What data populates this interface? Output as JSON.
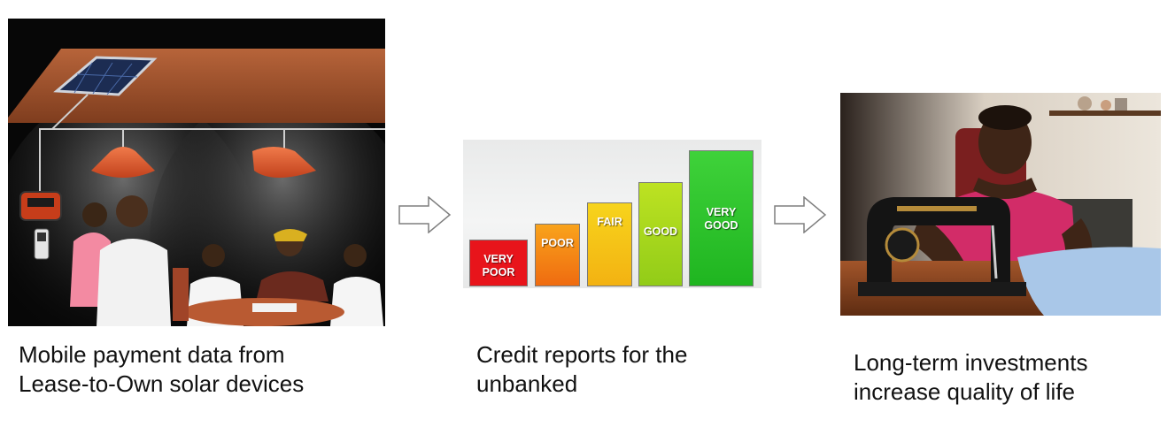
{
  "steps": [
    {
      "caption_line1": "Mobile payment data from",
      "caption_line2": "Lease-to-Own solar devices",
      "image_icon": "solar-home-system-illustration"
    },
    {
      "caption_line1": "Credit reports for the",
      "caption_line2": "unbanked",
      "image_icon": "credit-score-bar-chart"
    },
    {
      "caption_line1": "Long-term investments",
      "caption_line2": "increase quality of life",
      "image_icon": "woman-at-sewing-machine-photo"
    }
  ],
  "arrows": [
    "right-arrow-icon",
    "right-arrow-icon"
  ],
  "credit_scale": {
    "levels": [
      {
        "line1": "VERY",
        "line2": "POOR",
        "color": "#e8141b",
        "rank": 1
      },
      {
        "line1": "POOR",
        "line2": "",
        "color": "#f58a12",
        "rank": 2
      },
      {
        "line1": "FAIR",
        "line2": "",
        "color": "#f5c414",
        "rank": 3
      },
      {
        "line1": "GOOD",
        "line2": "",
        "color": "#a6d51c",
        "rank": 4
      },
      {
        "line1": "VERY",
        "line2": "GOOD",
        "color": "#27c226",
        "rank": 5
      }
    ]
  }
}
